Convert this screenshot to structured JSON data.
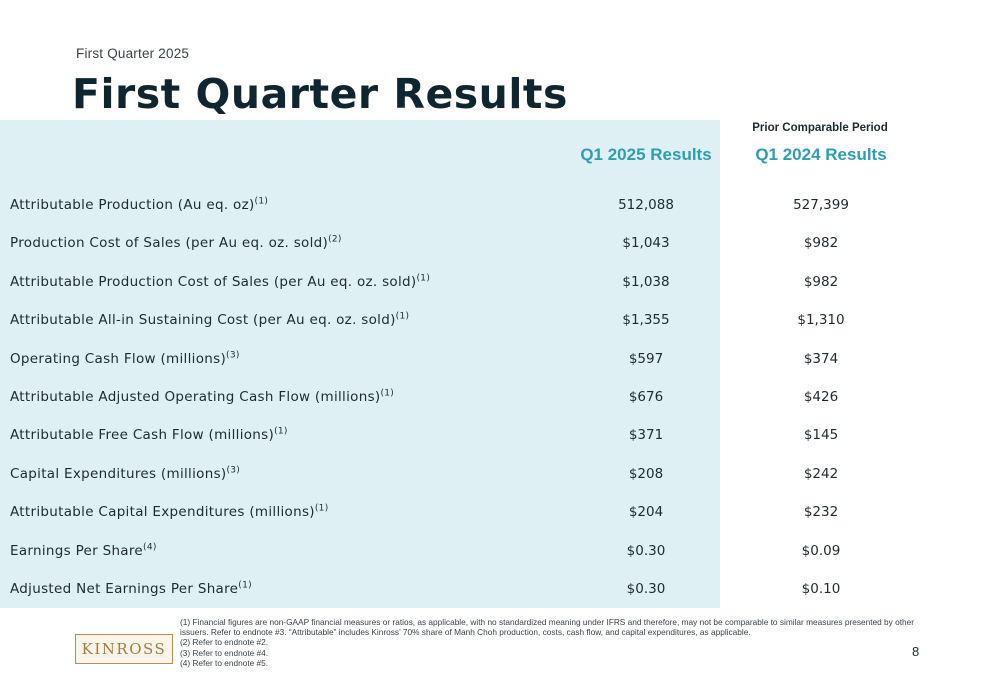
{
  "header": {
    "subtitle": "First Quarter 2025",
    "title": "First Quarter Results"
  },
  "table": {
    "prior_period_label": "Prior Comparable Period",
    "col_q1": "Q1 2025 Results",
    "col_prior": "Q1 2024 Results",
    "rows": [
      {
        "label": "Attributable Production (Au eq. oz)",
        "note": "(1)",
        "q1_2025": "512,088",
        "q1_2024": "527,399"
      },
      {
        "label": "Production Cost of Sales (per Au eq. oz. sold)",
        "note": "(2)",
        "q1_2025": "$1,043",
        "q1_2024": "$982"
      },
      {
        "label": "Attributable Production Cost of Sales (per Au eq. oz. sold)",
        "note": "(1)",
        "q1_2025": "$1,038",
        "q1_2024": "$982"
      },
      {
        "label": "Attributable All-in Sustaining Cost (per Au eq. oz. sold)",
        "note": "(1)",
        "q1_2025": "$1,355",
        "q1_2024": "$1,310"
      },
      {
        "label": "Operating Cash Flow (millions)",
        "note": "(3)",
        "q1_2025": "$597",
        "q1_2024": "$374"
      },
      {
        "label": "Attributable Adjusted Operating Cash Flow (millions)",
        "note": "(1)",
        "q1_2025": "$676",
        "q1_2024": "$426"
      },
      {
        "label": "Attributable Free Cash Flow (millions)",
        "note": "(1)",
        "q1_2025": "$371",
        "q1_2024": "$145"
      },
      {
        "label": "Capital Expenditures (millions)",
        "note": "(3)",
        "q1_2025": "$208",
        "q1_2024": "$242"
      },
      {
        "label": "Attributable Capital Expenditures (millions)",
        "note": "(1)",
        "q1_2025": "$204",
        "q1_2024": "$232"
      },
      {
        "label": "Earnings Per Share",
        "note": "(4)",
        "q1_2025": "$0.30",
        "q1_2024": "$0.09"
      },
      {
        "label": "Adjusted Net Earnings Per Share",
        "note": "(1)",
        "q1_2025": "$0.30",
        "q1_2024": "$0.10"
      }
    ]
  },
  "footer": {
    "logo_text": "KINROSS",
    "footnotes": [
      "(1) Financial figures are non-GAAP financial measures or ratios, as applicable, with no standardized meaning under IFRS and therefore, may not be comparable to similar measures presented by other issuers. Refer to endnote #3. “Attributable” includes Kinross’ 70% share of Manh Choh production, costs, cash flow, and capital expenditures, as applicable.",
      "(2) Refer to endnote #2.",
      "(3) Refer to endnote #4.",
      "(4) Refer to endnote #5."
    ],
    "page_number": "8"
  },
  "colors": {
    "table_background": "#dff0f4",
    "column_header": "#2e9db0",
    "title": "#0f2630",
    "logo_gold": "#a57b43"
  }
}
